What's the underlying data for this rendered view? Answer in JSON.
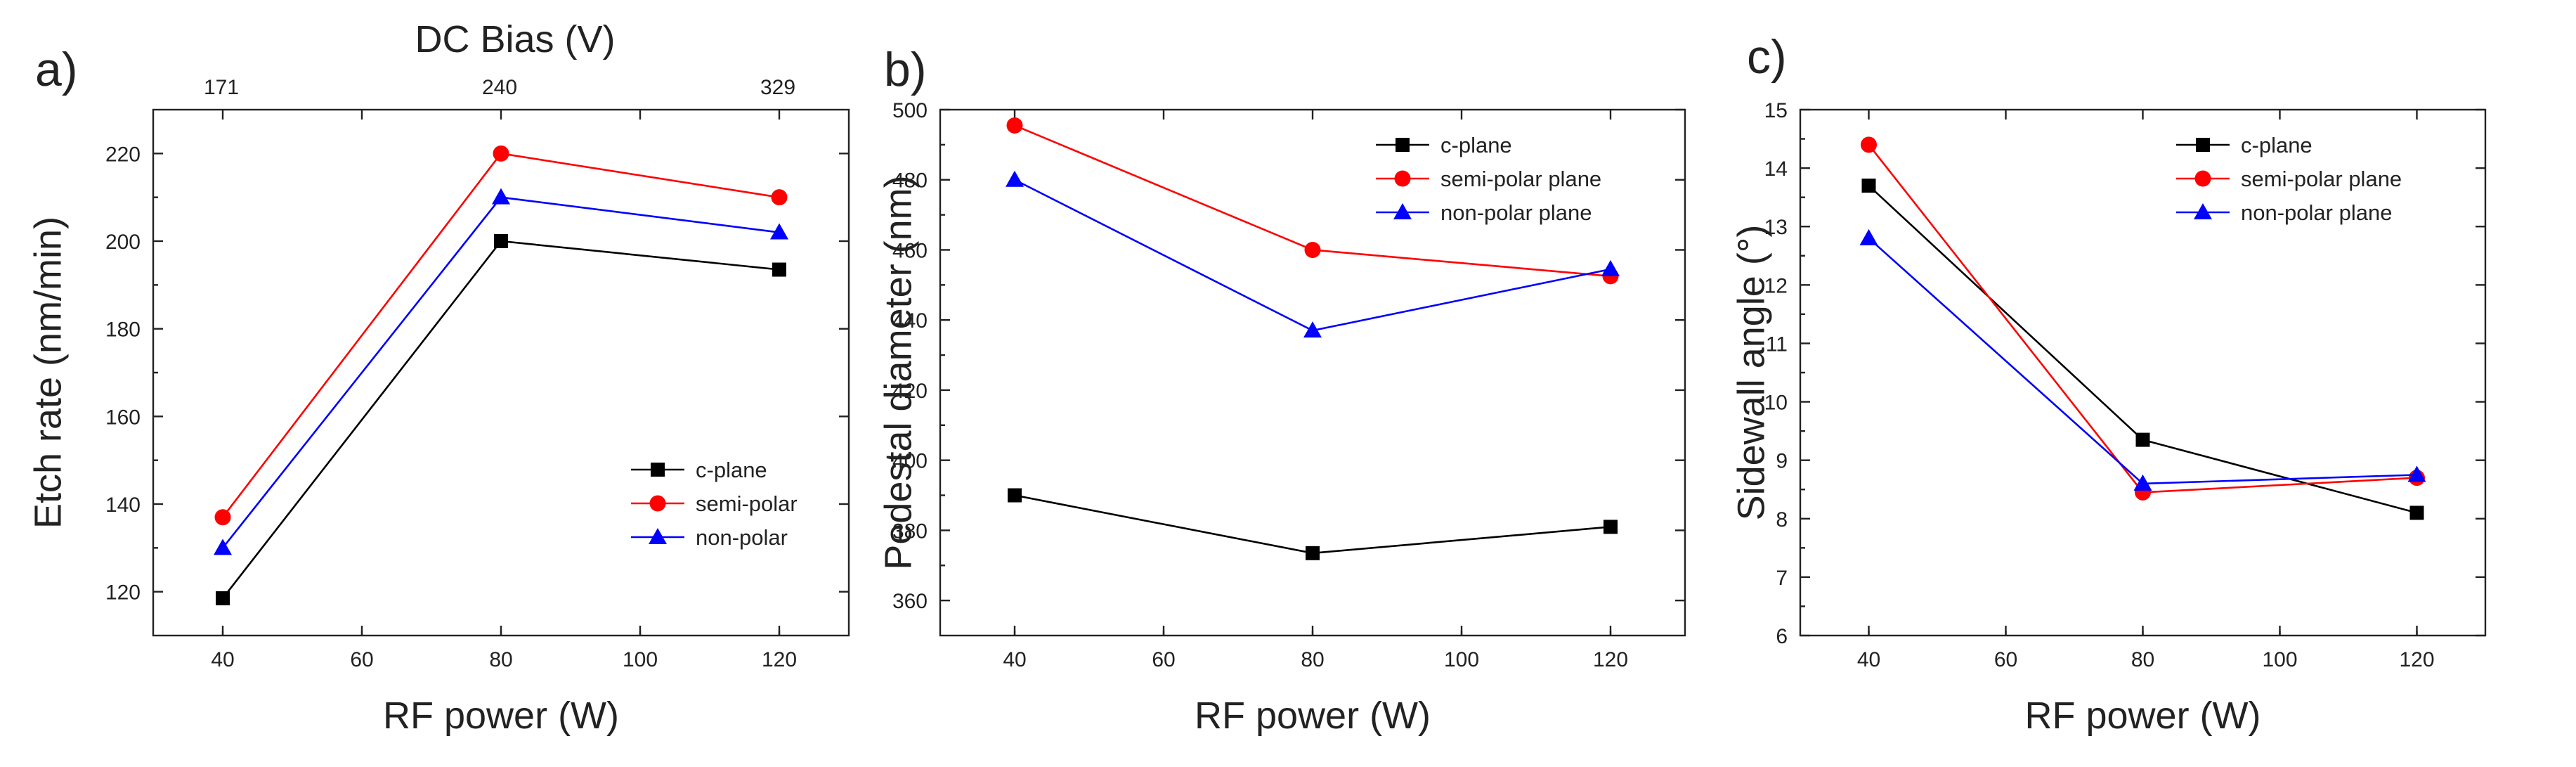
{
  "chart_data": [
    {
      "panel": "a)",
      "type": "line",
      "xlabel": "RF power (W)",
      "ylabel": "Etch rate (nm/min)",
      "top_axis_title": "DC Bias (V)",
      "top_axis_ticks": [
        "171",
        "240",
        "329"
      ],
      "xlim": [
        30,
        130
      ],
      "ylim": [
        110,
        230
      ],
      "xticks": [
        40,
        60,
        80,
        100,
        120
      ],
      "yticks": [
        120,
        140,
        160,
        180,
        200,
        220
      ],
      "legend_position": "bottom-right",
      "x": [
        40,
        80,
        120
      ],
      "series": [
        {
          "name": "c-plane",
          "values": [
            118.5,
            200,
            193.5
          ],
          "color": "#000000",
          "marker": "square"
        },
        {
          "name": "semi-polar",
          "values": [
            137,
            220,
            210
          ],
          "color": "#ff0000",
          "marker": "circle"
        },
        {
          "name": "non-polar",
          "values": [
            130,
            210,
            202
          ],
          "color": "#0000ff",
          "marker": "triangle"
        }
      ]
    },
    {
      "panel": "b)",
      "type": "line",
      "xlabel": "RF power (W)",
      "ylabel": "Pedestal diameter (nm)",
      "xlim": [
        30,
        130
      ],
      "ylim": [
        350,
        500
      ],
      "xticks": [
        40,
        60,
        80,
        100,
        120
      ],
      "yticks": [
        360,
        380,
        400,
        420,
        440,
        460,
        480,
        500
      ],
      "legend_position": "top-right",
      "x": [
        40,
        80,
        120
      ],
      "series": [
        {
          "name": "c-plane",
          "values": [
            390,
            373.5,
            381
          ],
          "color": "#000000",
          "marker": "square"
        },
        {
          "name": "semi-polar plane",
          "values": [
            495.5,
            460,
            452.5
          ],
          "color": "#ff0000",
          "marker": "circle"
        },
        {
          "name": "non-polar plane",
          "values": [
            480,
            437,
            454.5
          ],
          "color": "#0000ff",
          "marker": "triangle"
        }
      ]
    },
    {
      "panel": "c)",
      "type": "line",
      "xlabel": "RF power (W)",
      "ylabel": "Sidewall angle (°)",
      "xlim": [
        30,
        130
      ],
      "ylim": [
        6,
        15
      ],
      "xticks": [
        40,
        60,
        80,
        100,
        120
      ],
      "yticks": [
        6,
        7,
        8,
        9,
        10,
        11,
        12,
        13,
        14,
        15
      ],
      "legend_position": "top-right",
      "x": [
        40,
        80,
        120
      ],
      "series": [
        {
          "name": "c-plane",
          "values": [
            13.7,
            9.35,
            8.1
          ],
          "color": "#000000",
          "marker": "square"
        },
        {
          "name": "semi-polar plane",
          "values": [
            14.4,
            8.45,
            8.7
          ],
          "color": "#ff0000",
          "marker": "circle"
        },
        {
          "name": "non-polar plane",
          "values": [
            12.8,
            8.6,
            8.75
          ],
          "color": "#0000ff",
          "marker": "triangle"
        }
      ]
    }
  ]
}
